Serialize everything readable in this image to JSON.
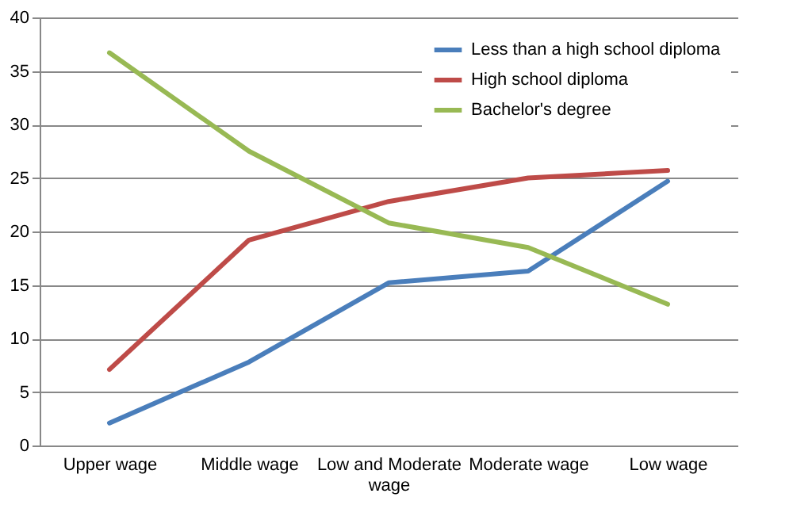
{
  "chart_data": {
    "type": "line",
    "categories": [
      "Upper wage",
      "Middle wage",
      "Low and Moderate wage",
      "Moderate wage",
      "Low wage"
    ],
    "series": [
      {
        "name": "Less than a high school diploma",
        "color": "#4a7ebb",
        "values": [
          2.1,
          7.8,
          15.2,
          16.3,
          24.7
        ]
      },
      {
        "name": "High school diploma",
        "color": "#be4b48",
        "values": [
          7.1,
          19.2,
          22.8,
          25.0,
          25.7
        ]
      },
      {
        "name": "Bachelor's degree",
        "color": "#98b954",
        "values": [
          36.7,
          27.5,
          20.8,
          18.5,
          13.2
        ]
      }
    ],
    "ylim": [
      0,
      40
    ],
    "yticks": [
      0,
      5,
      10,
      15,
      20,
      25,
      30,
      35,
      40
    ],
    "grid": "y",
    "legend": "top right",
    "marker": "none",
    "line_style": "solid"
  }
}
